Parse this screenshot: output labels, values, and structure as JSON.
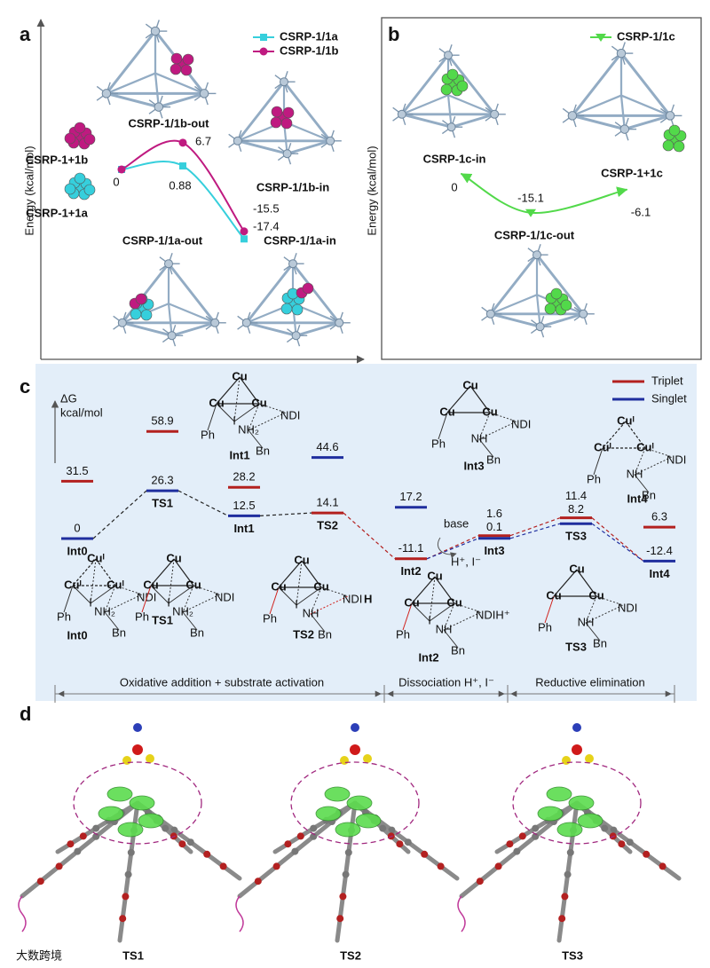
{
  "panel_a": {
    "label": "a",
    "y_axis_label": "Energy (kcal/mol)",
    "series": [
      {
        "name": "CSRP-1/1a",
        "color": "#36cfdc",
        "marker": "square",
        "values": [
          0,
          0.88,
          -17.4
        ]
      },
      {
        "name": "CSRP-1/1b",
        "color": "#bf1a80",
        "marker": "circle",
        "values": [
          0,
          6.7,
          -15.5
        ]
      }
    ],
    "species": {
      "b_out": "CSRP-1/1b-out",
      "b_free": "CSRP-1+1b",
      "a_free": "CSRP-1+1a",
      "b_in": "CSRP-1/1b-in",
      "a_out": "CSRP-1/1a-out",
      "a_in": "CSRP-1/1a-in"
    }
  },
  "panel_b": {
    "label": "b",
    "y_axis_label": "Energy (kcal/mol)",
    "series": [
      {
        "name": "CSRP-1/1c",
        "color": "#52d94a",
        "marker": "triangle",
        "values": [
          0,
          -15.1,
          -6.1
        ]
      }
    ],
    "species": {
      "in": "CSRP-1c-in",
      "free": "CSRP-1+1c",
      "out": "CSRP-1/1c-out"
    }
  },
  "panel_c": {
    "label": "c",
    "y_axis_label": "ΔG",
    "y_axis_unit": "kcal/mol",
    "states": [
      "Int0",
      "TS1",
      "Int1",
      "TS2",
      "Int2",
      "Int3",
      "TS3",
      "Int4"
    ],
    "series": [
      {
        "name": "Triplet",
        "color": "#b3201f",
        "values": [
          31.5,
          58.9,
          28.2,
          14.1,
          -11.1,
          1.6,
          11.4,
          6.3
        ]
      },
      {
        "name": "Singlet",
        "color": "#1f2e9e",
        "values": [
          0,
          26.3,
          12.5,
          44.6,
          17.2,
          0.1,
          8.2,
          -12.4
        ]
      }
    ],
    "annotations": {
      "base": "base",
      "released": "H⁺, I⁻"
    },
    "stages": [
      "Oxidative addition + substrate activation",
      "Dissociation H⁺, I⁻",
      "Reductive elimination"
    ],
    "structures": [
      {
        "caption": "Int1",
        "cu_color": "#d0211c",
        "cu": [
          "Cu",
          "Cu",
          "Cu"
        ],
        "ph": "Ph",
        "iodide": "I",
        "amine": "NH₂",
        "bn": "Bn",
        "ndi": "NDI"
      },
      {
        "caption": "Int3",
        "cu_color": "#d0211c",
        "cu": [
          "Cu",
          "Cu",
          "Cu"
        ],
        "ph": "Ph",
        "amine": "NH",
        "bn": "Bn",
        "ndi": "NDI"
      },
      {
        "caption": "Int4",
        "cu_color": "#111111",
        "cu": [
          "Cuᴵ",
          "Cuᴵ",
          "Cuᴵ"
        ],
        "ph": "Ph",
        "amine": "NH",
        "bn": "Bn",
        "ndi": "NDI"
      },
      {
        "caption": "Int0",
        "cu_color": "#111111",
        "cu": [
          "Cuᴵ",
          "Cuᴵ",
          "Cuᴵ"
        ],
        "ph": "Ph",
        "iodide": "I",
        "amine": "NH₂",
        "bn": "Bn",
        "ndi": "NDI"
      },
      {
        "caption": "TS1",
        "cu_color": "#d0211c",
        "cu": [
          "Cu",
          "Cu",
          "Cu"
        ],
        "ph": "Ph",
        "iodide": "I",
        "amine": "NH₂",
        "bn": "Bn",
        "ndi": "NDI"
      },
      {
        "caption": "TS2",
        "cu_color": "#d0211c",
        "cu": [
          "Cu",
          "Cu",
          "Cu"
        ],
        "ph": "Ph",
        "iodide": "I",
        "amine": "NH",
        "bn": "Bn",
        "ndi": "NDI",
        "h": "H"
      },
      {
        "caption": "Int2",
        "cu_color": "#d0211c",
        "cu": [
          "Cu",
          "Cu",
          "Cu"
        ],
        "ph": "Ph",
        "iodide": "I",
        "amine": "NH",
        "bn": "Bn",
        "ndi": "NDIH⁺"
      },
      {
        "caption": "TS3",
        "cu_color": "#d0211c",
        "cu": [
          "Cu",
          "Cu",
          "Cu"
        ],
        "ph": "Ph",
        "amine": "NH",
        "bn": "Bn",
        "ndi": "NDI"
      }
    ]
  },
  "panel_d": {
    "label": "d",
    "captions": [
      "TS1",
      "TS2",
      "TS3"
    ]
  },
  "watermark": "大数跨境"
}
